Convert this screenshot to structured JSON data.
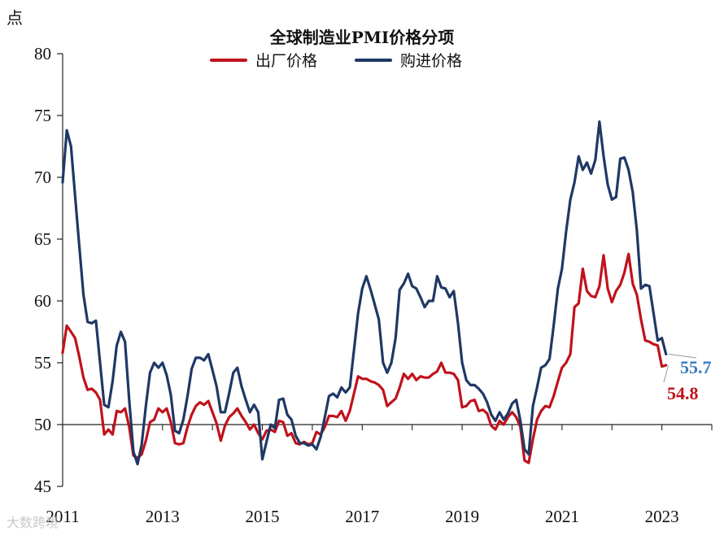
{
  "chart_data": {
    "type": "line",
    "title": "全球制造业PMI价格分项",
    "ylabel": "点",
    "xlabel": "",
    "ylim": [
      45,
      80
    ],
    "yticks": [
      45,
      50,
      55,
      60,
      65,
      70,
      75,
      80
    ],
    "reference_line": 50,
    "xlim": [
      2011.0,
      2024.0
    ],
    "xtick_labels": [
      "2011",
      "2013",
      "2015",
      "2017",
      "2019",
      "2021",
      "2023"
    ],
    "legend": {
      "placement": "top-center"
    },
    "series": [
      {
        "name": "出厂价格",
        "color": "#c0121c",
        "points": [
          [
            2011.0,
            55.8
          ],
          [
            2011.083,
            58.0
          ],
          [
            2011.167,
            57.5
          ],
          [
            2011.25,
            57.0
          ],
          [
            2011.333,
            55.5
          ],
          [
            2011.417,
            53.8
          ],
          [
            2011.5,
            52.8
          ],
          [
            2011.583,
            52.9
          ],
          [
            2011.667,
            52.6
          ],
          [
            2011.75,
            52.0
          ],
          [
            2011.833,
            49.2
          ],
          [
            2011.917,
            49.6
          ],
          [
            2012.0,
            49.2
          ],
          [
            2012.083,
            51.1
          ],
          [
            2012.167,
            51.0
          ],
          [
            2012.25,
            51.3
          ],
          [
            2012.333,
            49.8
          ],
          [
            2012.417,
            47.5
          ],
          [
            2012.5,
            47.3
          ],
          [
            2012.583,
            47.6
          ],
          [
            2012.667,
            48.7
          ],
          [
            2012.75,
            50.2
          ],
          [
            2012.833,
            50.4
          ],
          [
            2012.917,
            51.3
          ],
          [
            2013.0,
            51.0
          ],
          [
            2013.083,
            51.3
          ],
          [
            2013.167,
            50.2
          ],
          [
            2013.25,
            48.5
          ],
          [
            2013.333,
            48.4
          ],
          [
            2013.417,
            48.5
          ],
          [
            2013.5,
            49.8
          ],
          [
            2013.583,
            50.8
          ],
          [
            2013.667,
            51.5
          ],
          [
            2013.75,
            51.8
          ],
          [
            2013.833,
            51.6
          ],
          [
            2013.917,
            51.9
          ],
          [
            2014.0,
            51.0
          ],
          [
            2014.083,
            50.1
          ],
          [
            2014.167,
            48.7
          ],
          [
            2014.25,
            49.9
          ],
          [
            2014.333,
            50.6
          ],
          [
            2014.417,
            50.9
          ],
          [
            2014.5,
            51.3
          ],
          [
            2014.583,
            50.7
          ],
          [
            2014.667,
            50.2
          ],
          [
            2014.75,
            49.6
          ],
          [
            2014.833,
            50.0
          ],
          [
            2014.917,
            49.3
          ],
          [
            2015.0,
            48.8
          ],
          [
            2015.083,
            49.5
          ],
          [
            2015.167,
            49.6
          ],
          [
            2015.25,
            49.4
          ],
          [
            2015.333,
            50.3
          ],
          [
            2015.417,
            50.2
          ],
          [
            2015.5,
            49.1
          ],
          [
            2015.583,
            49.3
          ],
          [
            2015.667,
            48.5
          ],
          [
            2015.75,
            48.4
          ],
          [
            2015.833,
            48.6
          ],
          [
            2015.917,
            48.4
          ],
          [
            2016.0,
            48.5
          ],
          [
            2016.083,
            49.4
          ],
          [
            2016.167,
            49.2
          ],
          [
            2016.25,
            49.8
          ],
          [
            2016.333,
            50.7
          ],
          [
            2016.417,
            50.7
          ],
          [
            2016.5,
            50.6
          ],
          [
            2016.583,
            51.1
          ],
          [
            2016.667,
            50.3
          ],
          [
            2016.75,
            51.1
          ],
          [
            2016.833,
            52.5
          ],
          [
            2016.917,
            53.9
          ],
          [
            2017.0,
            53.7
          ],
          [
            2017.083,
            53.7
          ],
          [
            2017.167,
            53.5
          ],
          [
            2017.25,
            53.4
          ],
          [
            2017.333,
            53.2
          ],
          [
            2017.417,
            52.8
          ],
          [
            2017.5,
            51.5
          ],
          [
            2017.583,
            51.8
          ],
          [
            2017.667,
            52.1
          ],
          [
            2017.75,
            53.0
          ],
          [
            2017.833,
            54.1
          ],
          [
            2017.917,
            53.7
          ],
          [
            2018.0,
            54.1
          ],
          [
            2018.083,
            53.6
          ],
          [
            2018.167,
            53.9
          ],
          [
            2018.25,
            53.8
          ],
          [
            2018.333,
            53.8
          ],
          [
            2018.417,
            54.1
          ],
          [
            2018.5,
            54.3
          ],
          [
            2018.583,
            55.0
          ],
          [
            2018.667,
            54.2
          ],
          [
            2018.75,
            54.2
          ],
          [
            2018.833,
            54.1
          ],
          [
            2018.917,
            53.6
          ],
          [
            2019.0,
            51.4
          ],
          [
            2019.083,
            51.5
          ],
          [
            2019.167,
            51.9
          ],
          [
            2019.25,
            52.0
          ],
          [
            2019.333,
            51.1
          ],
          [
            2019.417,
            51.2
          ],
          [
            2019.5,
            50.9
          ],
          [
            2019.583,
            49.9
          ],
          [
            2019.667,
            49.6
          ],
          [
            2019.75,
            50.3
          ],
          [
            2019.833,
            50.0
          ],
          [
            2019.917,
            50.6
          ],
          [
            2020.0,
            51.0
          ],
          [
            2020.083,
            50.6
          ],
          [
            2020.167,
            49.8
          ],
          [
            2020.25,
            47.1
          ],
          [
            2020.333,
            46.9
          ],
          [
            2020.417,
            48.8
          ],
          [
            2020.5,
            50.4
          ],
          [
            2020.583,
            51.1
          ],
          [
            2020.667,
            51.5
          ],
          [
            2020.75,
            51.4
          ],
          [
            2020.833,
            52.3
          ],
          [
            2020.917,
            53.5
          ],
          [
            2021.0,
            54.6
          ],
          [
            2021.083,
            55.0
          ],
          [
            2021.167,
            55.7
          ],
          [
            2021.25,
            59.5
          ],
          [
            2021.333,
            59.8
          ],
          [
            2021.417,
            62.6
          ],
          [
            2021.5,
            60.8
          ],
          [
            2021.583,
            60.4
          ],
          [
            2021.667,
            60.3
          ],
          [
            2021.75,
            61.2
          ],
          [
            2021.833,
            63.7
          ],
          [
            2021.917,
            61.0
          ],
          [
            2022.0,
            59.9
          ],
          [
            2022.083,
            60.8
          ],
          [
            2022.167,
            61.3
          ],
          [
            2022.25,
            62.3
          ],
          [
            2022.333,
            63.8
          ],
          [
            2022.417,
            61.4
          ],
          [
            2022.5,
            60.5
          ],
          [
            2022.583,
            58.5
          ],
          [
            2022.667,
            56.8
          ],
          [
            2022.75,
            56.7
          ],
          [
            2022.833,
            56.5
          ],
          [
            2022.917,
            56.4
          ],
          [
            2023.0,
            54.7
          ],
          [
            2023.083,
            54.8
          ]
        ]
      },
      {
        "name": "购进价格",
        "color": "#1f3864",
        "points": [
          [
            2011.0,
            69.6
          ],
          [
            2011.083,
            73.8
          ],
          [
            2011.167,
            72.5
          ],
          [
            2011.25,
            68.5
          ],
          [
            2011.333,
            64.5
          ],
          [
            2011.417,
            60.5
          ],
          [
            2011.5,
            58.3
          ],
          [
            2011.583,
            58.2
          ],
          [
            2011.667,
            58.4
          ],
          [
            2011.75,
            55.0
          ],
          [
            2011.833,
            51.6
          ],
          [
            2011.917,
            51.4
          ],
          [
            2012.0,
            53.5
          ],
          [
            2012.083,
            56.4
          ],
          [
            2012.167,
            57.5
          ],
          [
            2012.25,
            56.7
          ],
          [
            2012.333,
            52.0
          ],
          [
            2012.417,
            47.8
          ],
          [
            2012.5,
            46.8
          ],
          [
            2012.583,
            48.4
          ],
          [
            2012.667,
            51.5
          ],
          [
            2012.75,
            54.2
          ],
          [
            2012.833,
            55.0
          ],
          [
            2012.917,
            54.6
          ],
          [
            2013.0,
            55.0
          ],
          [
            2013.083,
            54.0
          ],
          [
            2013.167,
            52.4
          ],
          [
            2013.25,
            49.5
          ],
          [
            2013.333,
            49.3
          ],
          [
            2013.417,
            50.4
          ],
          [
            2013.5,
            52.3
          ],
          [
            2013.583,
            54.5
          ],
          [
            2013.667,
            55.4
          ],
          [
            2013.75,
            55.4
          ],
          [
            2013.833,
            55.2
          ],
          [
            2013.917,
            55.7
          ],
          [
            2014.0,
            54.4
          ],
          [
            2014.083,
            53.1
          ],
          [
            2014.167,
            51.0
          ],
          [
            2014.25,
            51.0
          ],
          [
            2014.333,
            52.5
          ],
          [
            2014.417,
            54.2
          ],
          [
            2014.5,
            54.6
          ],
          [
            2014.583,
            53.1
          ],
          [
            2014.667,
            52.0
          ],
          [
            2014.75,
            51.0
          ],
          [
            2014.833,
            51.6
          ],
          [
            2014.917,
            51.0
          ],
          [
            2015.0,
            47.2
          ],
          [
            2015.083,
            48.6
          ],
          [
            2015.167,
            50.0
          ],
          [
            2015.25,
            49.7
          ],
          [
            2015.333,
            52.0
          ],
          [
            2015.417,
            52.1
          ],
          [
            2015.5,
            50.8
          ],
          [
            2015.583,
            50.4
          ],
          [
            2015.667,
            49.1
          ],
          [
            2015.75,
            48.5
          ],
          [
            2015.833,
            48.5
          ],
          [
            2015.917,
            48.3
          ],
          [
            2016.0,
            48.4
          ],
          [
            2016.083,
            48.0
          ],
          [
            2016.167,
            49.0
          ],
          [
            2016.25,
            50.6
          ],
          [
            2016.333,
            52.3
          ],
          [
            2016.417,
            52.5
          ],
          [
            2016.5,
            52.2
          ],
          [
            2016.583,
            53.0
          ],
          [
            2016.667,
            52.6
          ],
          [
            2016.75,
            53.0
          ],
          [
            2016.833,
            56.0
          ],
          [
            2016.917,
            59.0
          ],
          [
            2017.0,
            61.0
          ],
          [
            2017.083,
            62.0
          ],
          [
            2017.167,
            60.9
          ],
          [
            2017.25,
            59.7
          ],
          [
            2017.333,
            58.5
          ],
          [
            2017.417,
            55.0
          ],
          [
            2017.5,
            54.2
          ],
          [
            2017.583,
            55.0
          ],
          [
            2017.667,
            57.0
          ],
          [
            2017.75,
            60.9
          ],
          [
            2017.833,
            61.4
          ],
          [
            2017.917,
            62.2
          ],
          [
            2018.0,
            61.2
          ],
          [
            2018.083,
            61.0
          ],
          [
            2018.167,
            60.3
          ],
          [
            2018.25,
            59.5
          ],
          [
            2018.333,
            60.0
          ],
          [
            2018.417,
            60.0
          ],
          [
            2018.5,
            62.0
          ],
          [
            2018.583,
            61.1
          ],
          [
            2018.667,
            61.0
          ],
          [
            2018.75,
            60.3
          ],
          [
            2018.833,
            60.8
          ],
          [
            2018.917,
            58.2
          ],
          [
            2019.0,
            55.0
          ],
          [
            2019.083,
            53.6
          ],
          [
            2019.167,
            53.2
          ],
          [
            2019.25,
            53.2
          ],
          [
            2019.333,
            52.9
          ],
          [
            2019.417,
            52.5
          ],
          [
            2019.5,
            51.8
          ],
          [
            2019.583,
            50.8
          ],
          [
            2019.667,
            50.3
          ],
          [
            2019.75,
            51.0
          ],
          [
            2019.833,
            50.4
          ],
          [
            2019.917,
            50.9
          ],
          [
            2020.0,
            51.7
          ],
          [
            2020.083,
            52.0
          ],
          [
            2020.167,
            50.3
          ],
          [
            2020.25,
            48.0
          ],
          [
            2020.333,
            47.6
          ],
          [
            2020.417,
            51.5
          ],
          [
            2020.5,
            53.0
          ],
          [
            2020.583,
            54.6
          ],
          [
            2020.667,
            54.8
          ],
          [
            2020.75,
            55.3
          ],
          [
            2020.833,
            58.0
          ],
          [
            2020.917,
            61.0
          ],
          [
            2021.0,
            62.6
          ],
          [
            2021.083,
            65.6
          ],
          [
            2021.167,
            68.2
          ],
          [
            2021.25,
            69.6
          ],
          [
            2021.333,
            71.7
          ],
          [
            2021.417,
            70.6
          ],
          [
            2021.5,
            71.2
          ],
          [
            2021.583,
            70.3
          ],
          [
            2021.667,
            71.4
          ],
          [
            2021.75,
            74.5
          ],
          [
            2021.833,
            71.7
          ],
          [
            2021.917,
            69.4
          ],
          [
            2022.0,
            68.2
          ],
          [
            2022.083,
            68.4
          ],
          [
            2022.167,
            71.5
          ],
          [
            2022.25,
            71.6
          ],
          [
            2022.333,
            70.6
          ],
          [
            2022.417,
            68.8
          ],
          [
            2022.5,
            65.7
          ],
          [
            2022.583,
            61.0
          ],
          [
            2022.667,
            61.3
          ],
          [
            2022.75,
            61.2
          ],
          [
            2022.833,
            59.0
          ],
          [
            2022.917,
            56.8
          ],
          [
            2023.0,
            57.0
          ],
          [
            2023.083,
            55.7
          ]
        ]
      }
    ],
    "end_labels": [
      {
        "series": "购进价格",
        "text": "55.7",
        "value": 55.7,
        "color": "#3a7abf"
      },
      {
        "series": "出厂价格",
        "text": "54.8",
        "value": 54.8,
        "color": "#c0121c"
      }
    ]
  },
  "watermark": "大数跨境"
}
